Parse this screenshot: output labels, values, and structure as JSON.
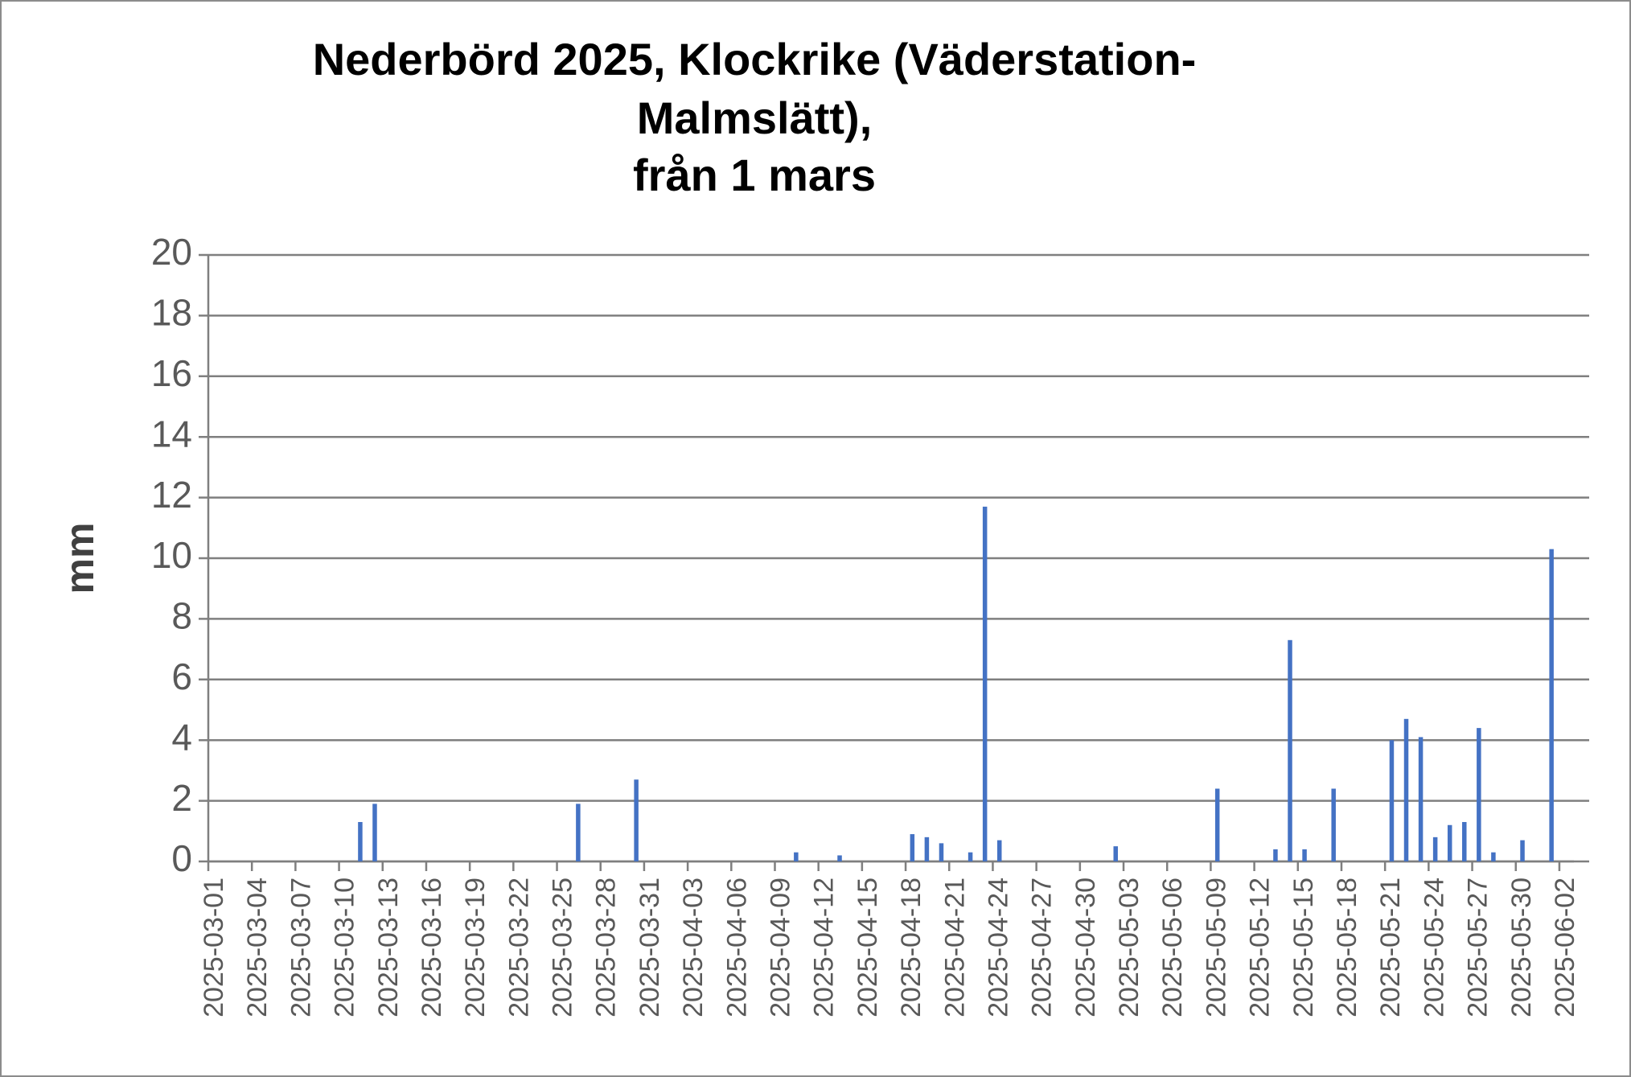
{
  "chart_data": {
    "type": "bar",
    "title": [
      "Nederbörd 2025, Klockrike (Väderstation-",
      "Malmslätt),",
      "från 1 mars"
    ],
    "y_label": "mm",
    "categories": [
      "2025-03-01",
      null,
      null,
      "2025-03-04",
      null,
      null,
      "2025-03-07",
      null,
      null,
      "2025-03-10",
      null,
      null,
      "2025-03-13",
      null,
      null,
      "2025-03-16",
      null,
      null,
      "2025-03-19",
      null,
      null,
      "2025-03-22",
      null,
      null,
      "2025-03-25",
      null,
      null,
      "2025-03-28",
      null,
      null,
      "2025-03-31",
      null,
      null,
      "2025-04-03",
      null,
      null,
      "2025-04-06",
      null,
      null,
      "2025-04-09",
      null,
      null,
      "2025-04-12",
      null,
      null,
      "2025-04-15",
      null,
      null,
      "2025-04-18",
      null,
      null,
      "2025-04-21",
      null,
      null,
      "2025-04-24",
      null,
      null,
      "2025-04-27",
      null,
      null,
      "2025-04-30",
      null,
      null,
      "2025-05-03",
      null,
      null,
      "2025-05-06",
      null,
      null,
      "2025-05-09",
      null,
      null,
      "2025-05-12",
      null,
      null,
      "2025-05-15",
      null,
      null,
      "2025-05-18",
      null,
      null,
      "2025-05-21",
      null,
      null,
      "2025-05-24",
      null,
      null,
      "2025-05-27",
      null,
      null,
      "2025-05-30",
      null,
      null,
      "2025-06-02"
    ],
    "values": [
      0,
      0,
      0,
      0,
      0,
      0,
      0,
      0,
      0,
      0,
      1.3,
      1.9,
      0,
      0,
      0,
      0,
      0,
      0,
      0,
      0,
      0,
      0,
      0,
      0,
      0,
      1.9,
      0,
      0,
      0,
      2.7,
      0,
      0,
      0,
      0,
      0,
      0,
      0,
      0,
      0,
      0,
      0.3,
      0,
      0,
      0.2,
      0,
      0,
      0,
      0,
      0.9,
      0.8,
      0.6,
      0,
      0.3,
      11.7,
      0.7,
      0,
      0,
      0,
      0,
      0,
      0,
      0,
      0.5,
      0,
      0,
      0,
      0,
      0,
      0,
      2.4,
      0,
      0,
      0,
      0.4,
      7.3,
      0.4,
      0,
      2.4,
      0,
      0,
      0,
      4.0,
      4.7,
      4.1,
      0.8,
      1.2,
      1.3,
      4.4,
      0.3,
      0,
      0.7,
      0,
      10.3,
      0
    ],
    "color": "#4472c4",
    "ylim": [
      0,
      20
    ],
    "yticks": [
      0,
      2,
      4,
      6,
      8,
      10,
      12,
      14,
      16,
      18,
      20
    ],
    "grid": true
  }
}
